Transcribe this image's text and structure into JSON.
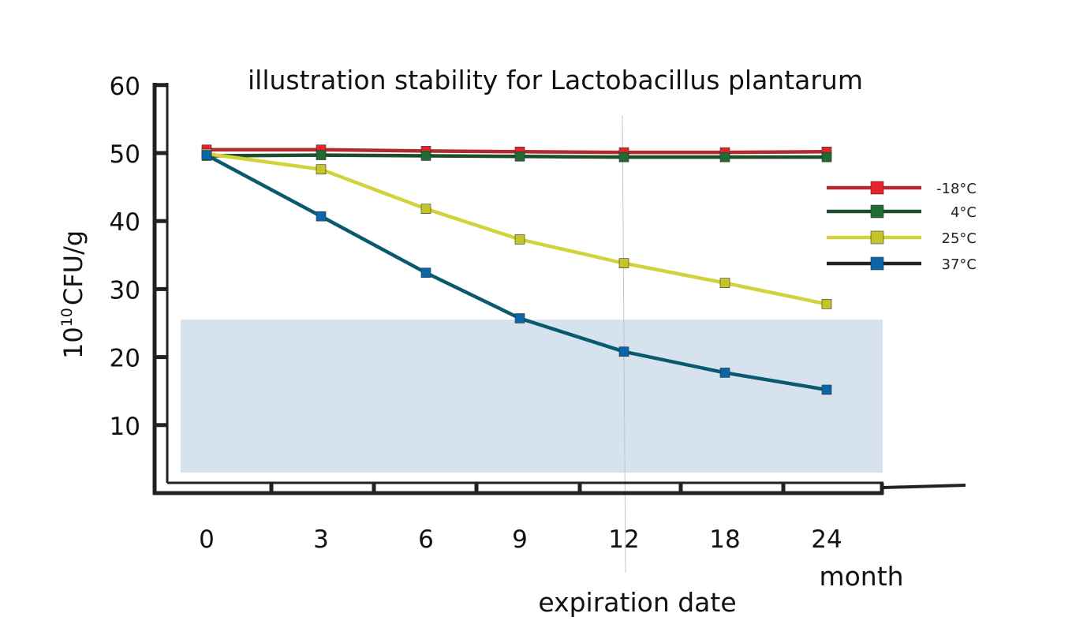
{
  "chart_data": {
    "type": "line",
    "title": "illustration stability for Lactobacillus plantarum",
    "ylabel_base": "10",
    "ylabel_sup": "10",
    "ylabel_rest": "CFU/g",
    "x_unit_label": "month",
    "annotation": "expiration date",
    "annotation_x": "12",
    "categories": [
      "0",
      "3",
      "6",
      "9",
      "12",
      "18",
      "24"
    ],
    "yticks": [
      10,
      20,
      30,
      40,
      50,
      60
    ],
    "ylim": [
      0,
      60
    ],
    "grid": false,
    "legend_position": "right",
    "shaded_band": {
      "from": 3,
      "to": 25.5,
      "color": "#d6e3ef"
    },
    "series": [
      {
        "name": "-18°C",
        "line_color": "#b22a2e",
        "marker_color": "#e8212a",
        "values": [
          50.5,
          50.5,
          50.3,
          50.2,
          50.1,
          50.1,
          50.2
        ]
      },
      {
        "name": "4°C",
        "line_color": "#1e4d2b",
        "marker_color": "#1f6b33",
        "values": [
          49.6,
          49.7,
          49.6,
          49.5,
          49.4,
          49.4,
          49.4
        ]
      },
      {
        "name": "25°C",
        "line_color": "#d4d23b",
        "marker_color": "#c3c52a",
        "values": [
          49.9,
          47.6,
          41.8,
          37.3,
          33.8,
          30.9,
          27.8
        ]
      },
      {
        "name": "37°C",
        "line_color": "#0a5a6f",
        "marker_color": "#0b66a8",
        "values": [
          49.7,
          40.7,
          32.4,
          25.7,
          20.8,
          17.7,
          15.2
        ]
      }
    ]
  }
}
